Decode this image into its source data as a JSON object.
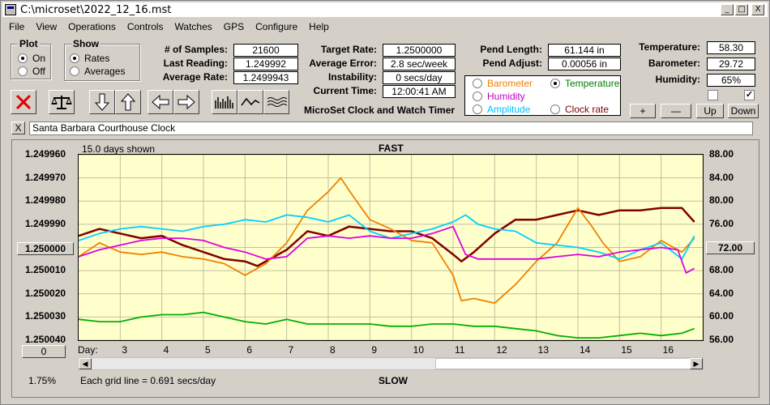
{
  "window": {
    "title": "C:\\microset\\2022_12_16.mst"
  },
  "window_buttons": [
    "_",
    "□",
    "X"
  ],
  "menu": [
    "File",
    "View",
    "Operations",
    "Controls",
    "Watches",
    "GPS",
    "Configure",
    "Help"
  ],
  "plot_group": {
    "title": "Plot",
    "options": [
      "On",
      "Off"
    ],
    "selected": "On"
  },
  "show_group": {
    "title": "Show",
    "options": [
      "Rates",
      "Averages"
    ],
    "selected": "Rates"
  },
  "stats_left": [
    {
      "label": "# of Samples:",
      "value": "21600"
    },
    {
      "label": "Last Reading:",
      "value": "1.249992"
    },
    {
      "label": "Average Rate:",
      "value": "1.2499943"
    }
  ],
  "stats_mid": [
    {
      "label": "Target Rate:",
      "value": "1.2500000"
    },
    {
      "label": "Average Error:",
      "value": "2.8 sec/week"
    },
    {
      "label": "Instability:",
      "value": "0 secs/day"
    },
    {
      "label": "Current Time:",
      "value": "12:00:41 AM"
    }
  ],
  "app_subtitle": "MicroSet Clock and Watch Timer",
  "pend": [
    {
      "label": "Pend Length:",
      "value": "61.144 in"
    },
    {
      "label": "Pend Adjust:",
      "value": "0.00056 in"
    }
  ],
  "sensor_select": {
    "options": [
      {
        "label": "Barometer",
        "color": "#f08000",
        "checked": false
      },
      {
        "label": "Temperature",
        "color": "#008000",
        "checked": true
      },
      {
        "label": "Humidity",
        "color": "#c000c0",
        "checked": false
      },
      {
        "label": "Amplitude",
        "color": "#00c0ff",
        "checked": false
      },
      {
        "label": "Clock rate",
        "color": "#800000",
        "checked": false
      }
    ]
  },
  "env": [
    {
      "label": "Temperature:",
      "value": "58.30"
    },
    {
      "label": "Barometer:",
      "value": "29.72"
    },
    {
      "label": "Humidity:",
      "value": "65%"
    }
  ],
  "env_buttons": [
    "+",
    "—",
    "Up",
    "Down"
  ],
  "checkboxes": [
    {
      "checked": false
    },
    {
      "checked": true
    }
  ],
  "watch": {
    "close_label": "X",
    "name": "Santa Barbara Courthouse Clock"
  },
  "chart_header": {
    "days_shown": "15.0 days shown",
    "top": "FAST",
    "bottom": "SLOW",
    "grid_note": "Each grid line = 0.691 secs/day",
    "percent": "1.75%",
    "offset_btn": "0",
    "center_btn_right": "72.00",
    "day_label": "Day:"
  },
  "chart_data": {
    "type": "line",
    "left_axis_ticks": [
      "1.249960",
      "1.249970",
      "1.249980",
      "1.249990",
      "1.250000",
      "1.250010",
      "1.250020",
      "1.250030",
      "1.250040"
    ],
    "left_axis_range": [
      1.24996,
      1.25004
    ],
    "left_axis_inverted": true,
    "right_axis_ticks": [
      "88.00",
      "84.00",
      "80.00",
      "76.00",
      "72.00",
      "68.00",
      "64.00",
      "60.00",
      "56.00"
    ],
    "right_axis_range": [
      56,
      88
    ],
    "x_label": "Day:",
    "x_ticks": [
      "3",
      "4",
      "5",
      "6",
      "7",
      "8",
      "9",
      "10",
      "11",
      "12",
      "13",
      "14",
      "15",
      "16"
    ],
    "x_range": [
      2.0,
      17.0
    ],
    "series": [
      {
        "color": "#800000",
        "axis": "left",
        "x": [
          2.0,
          2.5,
          3.0,
          3.5,
          4.0,
          4.5,
          5.0,
          5.5,
          6.0,
          6.3,
          6.6,
          7.0,
          7.5,
          8.0,
          8.5,
          9.0,
          9.5,
          10.0,
          10.5,
          11.0,
          11.2,
          11.5,
          12.0,
          12.5,
          13.0,
          13.5,
          14.0,
          14.5,
          15.0,
          15.5,
          16.0,
          16.5,
          16.8
        ],
        "y": [
          1.249995,
          1.249992,
          1.249994,
          1.249996,
          1.249995,
          1.249999,
          1.250002,
          1.250005,
          1.250006,
          1.250008,
          1.250005,
          1.250001,
          1.249993,
          1.249995,
          1.249991,
          1.249992,
          1.249993,
          1.249993,
          1.249996,
          1.250003,
          1.250006,
          1.250002,
          1.249994,
          1.249988,
          1.249988,
          1.249986,
          1.249984,
          1.249986,
          1.249984,
          1.249984,
          1.249983,
          1.249983,
          1.249989
        ]
      },
      {
        "color": "#f08000",
        "axis": "left",
        "x": [
          2.0,
          2.5,
          3.0,
          3.5,
          4.0,
          4.5,
          5.0,
          5.5,
          6.0,
          6.5,
          7.0,
          7.5,
          8.0,
          8.3,
          8.6,
          9.0,
          9.5,
          10.0,
          10.5,
          11.0,
          11.2,
          11.5,
          12.0,
          12.5,
          13.0,
          13.5,
          14.0,
          14.3,
          14.6,
          15.0,
          15.5,
          16.0,
          16.5,
          16.8
        ],
        "y": [
          1.250004,
          1.249998,
          1.250002,
          1.250003,
          1.250002,
          1.250004,
          1.250005,
          1.250007,
          1.250012,
          1.250007,
          1.249998,
          1.249984,
          1.249976,
          1.24997,
          1.249978,
          1.249988,
          1.249992,
          1.249997,
          1.249998,
          1.250012,
          1.250023,
          1.250022,
          1.250024,
          1.250016,
          1.250006,
          1.249998,
          1.249983,
          1.24999,
          1.249998,
          1.250006,
          1.250004,
          1.249997,
          1.250002,
          1.249996
        ]
      },
      {
        "color": "#00d0ff",
        "axis": "left",
        "x": [
          2.0,
          2.5,
          3.0,
          3.5,
          4.0,
          4.5,
          5.0,
          5.5,
          6.0,
          6.5,
          7.0,
          7.5,
          8.0,
          8.5,
          9.0,
          9.5,
          10.0,
          10.5,
          11.0,
          11.3,
          11.6,
          12.0,
          12.5,
          13.0,
          13.5,
          14.0,
          14.5,
          15.0,
          15.5,
          16.0,
          16.5,
          16.8
        ],
        "y": [
          1.249997,
          1.249994,
          1.249992,
          1.249991,
          1.249992,
          1.249993,
          1.249991,
          1.24999,
          1.249988,
          1.249989,
          1.249986,
          1.249987,
          1.249989,
          1.249986,
          1.249993,
          1.249996,
          1.249994,
          1.249992,
          1.249989,
          1.249986,
          1.24999,
          1.249992,
          1.249993,
          1.249998,
          1.249999,
          1.25,
          1.250002,
          1.250005,
          1.250001,
          1.249998,
          1.250005,
          1.249995
        ]
      },
      {
        "color": "#e000e0",
        "axis": "left",
        "x": [
          2.0,
          2.5,
          3.0,
          3.5,
          4.0,
          4.5,
          5.0,
          5.5,
          6.0,
          6.5,
          7.0,
          7.5,
          8.0,
          8.5,
          9.0,
          9.5,
          10.0,
          10.5,
          11.0,
          11.3,
          11.6,
          12.0,
          12.5,
          13.0,
          13.5,
          14.0,
          14.5,
          15.0,
          15.5,
          16.0,
          16.4,
          16.6,
          16.8
        ],
        "y": [
          1.250004,
          1.250001,
          1.249999,
          1.249997,
          1.249996,
          1.249996,
          1.249997,
          1.25,
          1.250002,
          1.250005,
          1.250004,
          1.249996,
          1.249995,
          1.249996,
          1.249995,
          1.249996,
          1.249996,
          1.249994,
          1.249991,
          1.250003,
          1.250005,
          1.250005,
          1.250005,
          1.250005,
          1.250004,
          1.250003,
          1.250004,
          1.250002,
          1.250001,
          1.25,
          1.250001,
          1.250011,
          1.250009
        ]
      },
      {
        "color": "#00b000",
        "axis": "left",
        "x": [
          2.0,
          2.5,
          3.0,
          3.5,
          4.0,
          4.5,
          5.0,
          5.5,
          6.0,
          6.5,
          7.0,
          7.5,
          8.0,
          8.5,
          9.0,
          9.5,
          10.0,
          10.5,
          11.0,
          11.5,
          12.0,
          12.5,
          13.0,
          13.5,
          14.0,
          14.5,
          15.0,
          15.5,
          16.0,
          16.5,
          16.8
        ],
        "y": [
          1.250031,
          1.250032,
          1.250032,
          1.25003,
          1.250029,
          1.250029,
          1.250028,
          1.25003,
          1.250032,
          1.250033,
          1.250031,
          1.250033,
          1.250033,
          1.250033,
          1.250033,
          1.250034,
          1.250034,
          1.250033,
          1.250033,
          1.250034,
          1.250034,
          1.250035,
          1.250036,
          1.250038,
          1.250039,
          1.250039,
          1.250038,
          1.250037,
          1.250038,
          1.250037,
          1.250035
        ]
      }
    ]
  }
}
